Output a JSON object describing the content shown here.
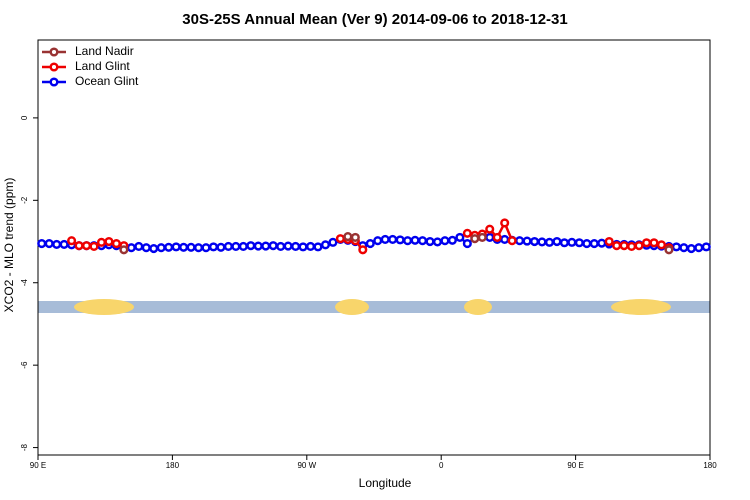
{
  "chart_data": {
    "type": "line",
    "title": "30S-25S Annual Mean (Ver 9)   2014-09-06 to 2018-12-31",
    "x_label": "Longitude",
    "y_label": "XCO2 - MLO trend (ppm)",
    "xlim": [
      90,
      540
    ],
    "ylim": [
      -8.18,
      1.89
    ],
    "xticks": [
      {
        "value": 90,
        "label": "90 E"
      },
      {
        "value": 180,
        "label": "180"
      },
      {
        "value": 270,
        "label": "90 W"
      },
      {
        "value": 360,
        "label": "0"
      },
      {
        "value": 450,
        "label": "90 E"
      },
      {
        "value": 540,
        "label": "180"
      }
    ],
    "yticks": [
      0,
      -2,
      -4,
      -6,
      -8
    ],
    "legend": "top-left",
    "series": [
      {
        "name": "Land Nadir",
        "color": "#993333",
        "x": [
          147.5,
          152.5,
          297.5,
          302.5,
          307.5,
          382.5,
          387.5,
          392.5,
          512.5
        ],
        "values": [
          -3.2,
          null,
          -2.88,
          -2.9,
          null,
          -2.93,
          -2.9,
          null,
          -3.2
        ]
      },
      {
        "name": "Land Glint",
        "color": "#ee0000",
        "x": [
          112.5,
          117.5,
          122.5,
          127.5,
          132.5,
          137.5,
          142.5,
          147.5,
          152.5,
          292.5,
          297.5,
          302.5,
          307.5,
          312.5,
          377.5,
          382.5,
          387.5,
          392.5,
          397.5,
          402.5,
          407.5,
          412.5,
          472.5,
          477.5,
          482.5,
          487.5,
          492.5,
          497.5,
          502.5,
          507.5,
          512.5
        ],
        "values": [
          -2.98,
          -3.1,
          -3.1,
          -3.12,
          -3.02,
          -3.0,
          -3.05,
          -3.1,
          null,
          -2.93,
          -2.95,
          -2.98,
          -3.2,
          null,
          -2.8,
          -2.85,
          -2.82,
          -2.7,
          -2.9,
          -2.55,
          -2.98,
          null,
          -3.0,
          -3.1,
          -3.1,
          -3.12,
          -3.1,
          -3.03,
          -3.03,
          -3.08,
          -3.15
        ]
      },
      {
        "name": "Ocean Glint",
        "color": "#0000ee",
        "x": [
          92.5,
          97.5,
          102.5,
          107.5,
          112.5,
          117.5,
          122.5,
          127.5,
          132.5,
          137.5,
          142.5,
          147.5,
          152.5,
          157.5,
          162.5,
          167.5,
          172.5,
          177.5,
          182.5,
          187.5,
          192.5,
          197.5,
          202.5,
          207.5,
          212.5,
          217.5,
          222.5,
          227.5,
          232.5,
          237.5,
          242.5,
          247.5,
          252.5,
          257.5,
          262.5,
          267.5,
          272.5,
          277.5,
          282.5,
          287.5,
          292.5,
          297.5,
          302.5,
          307.5,
          312.5,
          317.5,
          322.5,
          327.5,
          332.5,
          337.5,
          342.5,
          347.5,
          352.5,
          357.5,
          362.5,
          367.5,
          372.5,
          377.5,
          382.5,
          387.5,
          392.5,
          397.5,
          402.5,
          407.5,
          412.5,
          417.5,
          422.5,
          427.5,
          432.5,
          437.5,
          442.5,
          447.5,
          452.5,
          457.5,
          462.5,
          467.5,
          472.5,
          477.5,
          482.5,
          487.5,
          492.5,
          497.5,
          502.5,
          507.5,
          512.5,
          517.5,
          522.5,
          527.5,
          532.5,
          537.5
        ],
        "values": [
          -3.05,
          -3.05,
          -3.07,
          -3.07,
          -3.08,
          -3.1,
          -3.1,
          -3.1,
          -3.1,
          -3.08,
          -3.1,
          -3.12,
          -3.15,
          -3.12,
          -3.15,
          -3.17,
          -3.15,
          -3.14,
          -3.13,
          -3.14,
          -3.14,
          -3.15,
          -3.15,
          -3.13,
          -3.14,
          -3.12,
          -3.12,
          -3.12,
          -3.1,
          -3.11,
          -3.11,
          -3.1,
          -3.12,
          -3.11,
          -3.12,
          -3.13,
          -3.12,
          -3.13,
          -3.08,
          -3.02,
          -2.95,
          -2.97,
          -3.0,
          -3.1,
          -3.05,
          -2.98,
          -2.95,
          -2.95,
          -2.96,
          -2.98,
          -2.97,
          -2.98,
          -3.0,
          -3.01,
          -2.98,
          -2.97,
          -2.9,
          -3.05,
          -2.9,
          -2.88,
          -2.9,
          -2.95,
          -2.95,
          -2.97,
          -2.98,
          -2.99,
          -3.0,
          -3.01,
          -3.02,
          -3.0,
          -3.03,
          -3.02,
          -3.03,
          -3.05,
          -3.05,
          -3.04,
          -3.06,
          -3.07,
          -3.07,
          -3.08,
          -3.08,
          -3.09,
          -3.1,
          -3.11,
          -3.12,
          -3.13,
          -3.15,
          -3.17,
          -3.15,
          -3.13
        ]
      }
    ]
  }
}
